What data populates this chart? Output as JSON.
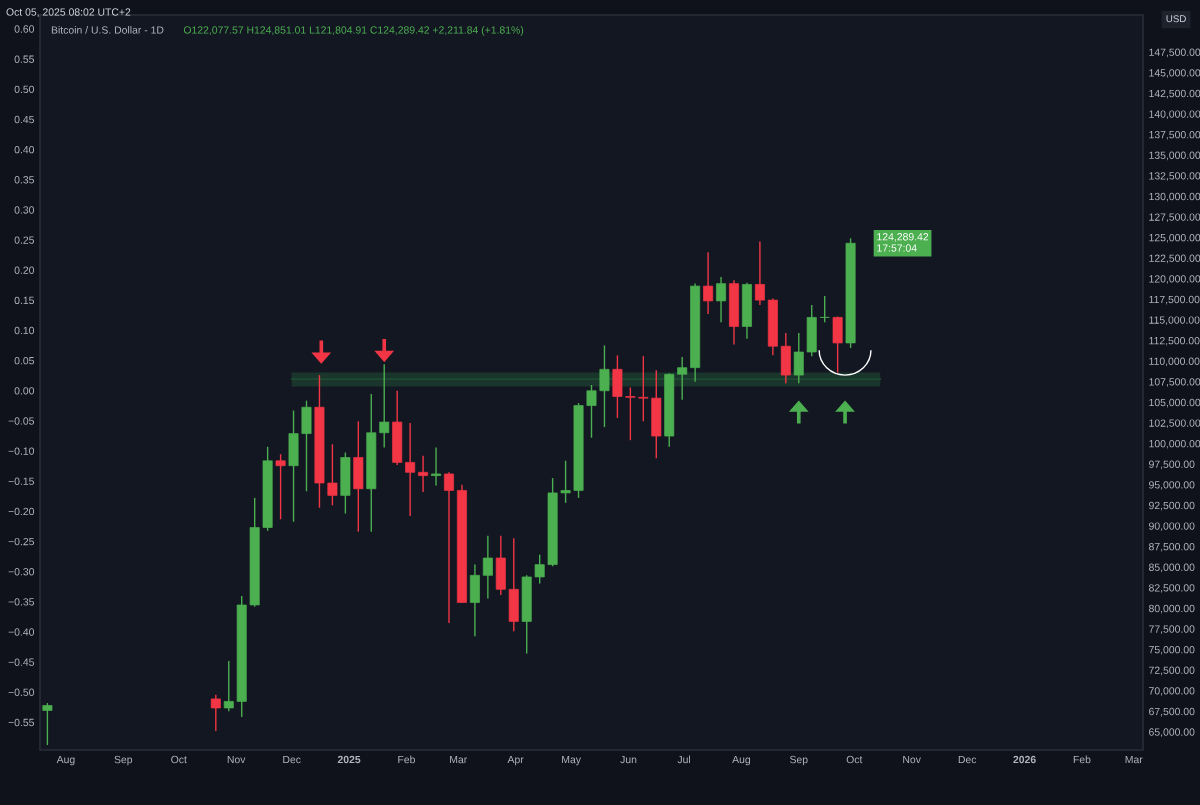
{
  "chart_data": {
    "type": "candlestick",
    "title": "Bitcoin / U.S. Dollar - 1D",
    "ylabel": "USD",
    "annotations": [
      "Oct 05, 2025 08:02 UTC+2",
      "O122,077.57 H124,851.01 L121,804.91 C124,289.42 +2,211.84 (+1.81%)",
      "124,289.42",
      "17:57:04"
    ],
    "x": [
      "2024-07-22",
      "2024-10-21",
      "2024-10-28",
      "2024-11-04",
      "2024-11-11",
      "2024-11-18",
      "2024-11-25",
      "2024-12-02",
      "2024-12-09",
      "2024-12-16",
      "2024-12-23",
      "2024-12-30",
      "2025-01-06",
      "2025-01-13",
      "2025-01-20",
      "2025-01-27",
      "2025-02-03",
      "2025-02-10",
      "2025-02-17",
      "2025-02-24",
      "2025-03-03",
      "2025-03-10",
      "2025-03-17",
      "2025-03-24",
      "2025-03-31",
      "2025-04-07",
      "2025-04-14",
      "2025-04-21",
      "2025-04-28",
      "2025-05-05",
      "2025-05-12",
      "2025-05-19",
      "2025-05-26",
      "2025-06-02",
      "2025-06-09",
      "2025-06-16",
      "2025-06-23",
      "2025-06-30",
      "2025-07-07",
      "2025-07-14",
      "2025-07-21",
      "2025-07-28",
      "2025-08-04",
      "2025-08-11",
      "2025-08-18",
      "2025-08-25",
      "2025-09-01",
      "2025-09-08",
      "2025-09-15",
      "2025-09-22",
      "2025-09-29"
    ],
    "ohlc": [
      [
        67600,
        68500,
        63400,
        68200
      ],
      [
        69000,
        69500,
        65100,
        67900
      ],
      [
        67900,
        73600,
        67500,
        68700
      ],
      [
        68700,
        81500,
        66800,
        80400
      ],
      [
        80400,
        93400,
        80200,
        89800
      ],
      [
        89800,
        99600,
        89400,
        97900
      ],
      [
        97900,
        98700,
        90800,
        97300
      ],
      [
        97300,
        104000,
        90500,
        101200
      ],
      [
        101200,
        105200,
        94200,
        104400
      ],
      [
        104400,
        108300,
        92200,
        95200
      ],
      [
        95200,
        99900,
        92500,
        93700
      ],
      [
        93700,
        98900,
        91500,
        98300
      ],
      [
        98300,
        102700,
        89300,
        94500
      ],
      [
        94500,
        106000,
        89300,
        101300
      ],
      [
        101300,
        109600,
        99500,
        102600
      ],
      [
        102600,
        106400,
        97400,
        97700
      ],
      [
        97700,
        102500,
        91200,
        96500
      ],
      [
        96500,
        98500,
        94100,
        96100
      ],
      [
        96100,
        99500,
        94900,
        96300
      ],
      [
        96300,
        96500,
        78200,
        94300
      ],
      [
        94300,
        95000,
        80700,
        80700
      ],
      [
        80700,
        85300,
        76600,
        84000
      ],
      [
        84000,
        88800,
        81200,
        86100
      ],
      [
        86100,
        88800,
        81600,
        82300
      ],
      [
        82300,
        88500,
        77200,
        78400
      ],
      [
        78400,
        84000,
        74500,
        83800
      ],
      [
        83800,
        86500,
        83000,
        85300
      ],
      [
        85300,
        95800,
        85100,
        94000
      ],
      [
        94000,
        97900,
        92800,
        94300
      ],
      [
        94300,
        104900,
        93400,
        104600
      ],
      [
        104600,
        107100,
        100700,
        106400
      ],
      [
        106400,
        111900,
        102000,
        109000
      ],
      [
        109000,
        110700,
        103100,
        105700
      ],
      [
        105700,
        106800,
        100400,
        105600
      ],
      [
        105600,
        110600,
        102700,
        105500
      ],
      [
        105500,
        108900,
        98200,
        100900
      ],
      [
        100900,
        108500,
        99600,
        108400
      ],
      [
        108400,
        110500,
        105300,
        109200
      ],
      [
        109200,
        119400,
        107500,
        119100
      ],
      [
        119100,
        123200,
        115700,
        117300
      ],
      [
        117300,
        120200,
        114700,
        119400
      ],
      [
        119400,
        119800,
        112000,
        114200
      ],
      [
        114200,
        119500,
        112700,
        119300
      ],
      [
        119300,
        124500,
        116800,
        117400
      ],
      [
        117400,
        117600,
        110700,
        111800
      ],
      [
        111800,
        113400,
        107300,
        108300
      ],
      [
        108300,
        113400,
        107300,
        111100
      ],
      [
        111100,
        116800,
        110600,
        115300
      ],
      [
        115300,
        117900,
        114700,
        115300
      ],
      [
        115300,
        115400,
        108600,
        112200
      ],
      [
        112200,
        124900,
        111600,
        124300
      ]
    ],
    "series": [
      {
        "type": "line",
        "color": "#1f4a32",
        "x": [
          "2024-12-01",
          "2025-10-15"
        ],
        "lower": [
          106900,
          106900
        ],
        "upper": [
          108600,
          108600
        ],
        "values": [
          107800,
          107800
        ]
      }
    ],
    "colors": [
      "#4caf50",
      "#f23645",
      "#4caf50",
      "#4caf50",
      "#4caf50",
      "#4caf50",
      "#f23645",
      "#4caf50",
      "#4caf50",
      "#f23645",
      "#f23645",
      "#4caf50",
      "#f23645",
      "#4caf50",
      "#4caf50",
      "#f23645",
      "#f23645",
      "#f23645",
      "#4caf50",
      "#f23645",
      "#f23645",
      "#4caf50",
      "#4caf50",
      "#f23645",
      "#f23645",
      "#4caf50",
      "#4caf50",
      "#4caf50",
      "#4caf50",
      "#4caf50",
      "#4caf50",
      "#4caf50",
      "#f23645",
      "#f23645",
      "#f23645",
      "#f23645",
      "#4caf50",
      "#4caf50",
      "#4caf50",
      "#f23645",
      "#4caf50",
      "#f23645",
      "#4caf50",
      "#f23645",
      "#f23645",
      "#f23645",
      "#4caf50",
      "#4caf50",
      "#4caf50",
      "#f23645",
      "#4caf50"
    ],
    "xlim": [
      "2024-07-18",
      "2026-03-06"
    ],
    "xticks": [
      {
        "value": "2024-08-01",
        "label": "Aug"
      },
      {
        "value": "2024-09-01",
        "label": "Sep"
      },
      {
        "value": "2024-10-01",
        "label": "Oct"
      },
      {
        "value": "2024-11-01",
        "label": "Nov"
      },
      {
        "value": "2024-12-01",
        "label": "Dec"
      },
      {
        "value": "2025-01-01",
        "label": "2025"
      },
      {
        "value": "2025-02-01",
        "label": "Feb"
      },
      {
        "value": "2025-03-01",
        "label": "Mar"
      },
      {
        "value": "2025-04-01",
        "label": "Apr"
      },
      {
        "value": "2025-05-01",
        "label": "May"
      },
      {
        "value": "2025-06-01",
        "label": "Jun"
      },
      {
        "value": "2025-07-01",
        "label": "Jul"
      },
      {
        "value": "2025-08-01",
        "label": "Aug"
      },
      {
        "value": "2025-09-01",
        "label": "Sep"
      },
      {
        "value": "2025-10-01",
        "label": "Oct"
      },
      {
        "value": "2025-11-01",
        "label": "Nov"
      },
      {
        "value": "2025-12-01",
        "label": "Dec"
      },
      {
        "value": "2026-01-01",
        "label": "2026"
      },
      {
        "value": "2026-02-01",
        "label": "Feb"
      },
      {
        "value": "2026-03-01",
        "label": "Mar"
      }
    ],
    "ylim": [
      62800,
      152000
    ],
    "yticks": [
      {
        "value": 65000,
        "label": "65,000.00"
      },
      {
        "value": 67500,
        "label": "67,500.00"
      },
      {
        "value": 70000,
        "label": "70,000.00"
      },
      {
        "value": 72500,
        "label": "72,500.00"
      },
      {
        "value": 75000,
        "label": "75,000.00"
      },
      {
        "value": 77500,
        "label": "77,500.00"
      },
      {
        "value": 80000,
        "label": "80,000.00"
      },
      {
        "value": 82500,
        "label": "82,500.00"
      },
      {
        "value": 85000,
        "label": "85,000.00"
      },
      {
        "value": 87500,
        "label": "87,500.00"
      },
      {
        "value": 90000,
        "label": "90,000.00"
      },
      {
        "value": 92500,
        "label": "92,500.00"
      },
      {
        "value": 95000,
        "label": "95,000.00"
      },
      {
        "value": 97500,
        "label": "97,500.00"
      },
      {
        "value": 100000,
        "label": "100,000.00"
      },
      {
        "value": 102500,
        "label": "102,500.00"
      },
      {
        "value": 105000,
        "label": "105,000.00"
      },
      {
        "value": 107500,
        "label": "107,500.00"
      },
      {
        "value": 110000,
        "label": "110,000.00"
      },
      {
        "value": 112500,
        "label": "112,500.00"
      },
      {
        "value": 115000,
        "label": "115,000.00"
      },
      {
        "value": 117500,
        "label": "117,500.00"
      },
      {
        "value": 120000,
        "label": "120,000.00"
      },
      {
        "value": 122500,
        "label": "122,500.00"
      },
      {
        "value": 125000,
        "label": "125,000.00"
      },
      {
        "value": 127500,
        "label": "127,500.00"
      },
      {
        "value": 130000,
        "label": "130,000.00"
      },
      {
        "value": 132500,
        "label": "132,500.00"
      },
      {
        "value": 135000,
        "label": "135,000.00"
      },
      {
        "value": 137500,
        "label": "137,500.00"
      },
      {
        "value": 140000,
        "label": "140,000.00"
      },
      {
        "value": 142500,
        "label": "142,500.00"
      },
      {
        "value": 145000,
        "label": "145,000.00"
      },
      {
        "value": 147500,
        "label": "147,500.00"
      }
    ],
    "y2lim": [
      -0.596,
      0.623
    ],
    "y2ticks": [
      {
        "value": -0.55,
        "label": "−0.55"
      },
      {
        "value": -0.5,
        "label": "−0.50"
      },
      {
        "value": -0.45,
        "label": "−0.45"
      },
      {
        "value": -0.4,
        "label": "−0.40"
      },
      {
        "value": -0.35,
        "label": "−0.35"
      },
      {
        "value": -0.3,
        "label": "−0.30"
      },
      {
        "value": -0.25,
        "label": "−0.25"
      },
      {
        "value": -0.2,
        "label": "−0.20"
      },
      {
        "value": -0.15,
        "label": "−0.15"
      },
      {
        "value": -0.1,
        "label": "−0.10"
      },
      {
        "value": -0.05,
        "label": "−0.05"
      },
      {
        "value": 0,
        "label": "0.00"
      },
      {
        "value": 0.05,
        "label": "0.05"
      },
      {
        "value": 0.1,
        "label": "0.10"
      },
      {
        "value": 0.15,
        "label": "0.15"
      },
      {
        "value": 0.2,
        "label": "0.20"
      },
      {
        "value": 0.25,
        "label": "0.25"
      },
      {
        "value": 0.3,
        "label": "0.30"
      },
      {
        "value": 0.35,
        "label": "0.35"
      },
      {
        "value": 0.4,
        "label": "0.40"
      },
      {
        "value": 0.45,
        "label": "0.45"
      },
      {
        "value": 0.5,
        "label": "0.50"
      },
      {
        "value": 0.55,
        "label": "0.55"
      },
      {
        "value": 0.6,
        "label": "0.60"
      }
    ],
    "grid": false,
    "legend": false
  }
}
